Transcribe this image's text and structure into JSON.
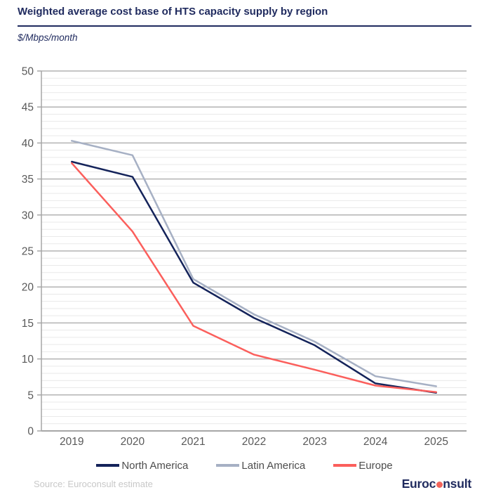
{
  "chart_data": {
    "type": "line",
    "title": "Weighted average cost base of HTS capacity supply by region",
    "ylabel": "$/Mbps/month",
    "xlabel": "",
    "x": [
      "2019",
      "2020",
      "2021",
      "2022",
      "2023",
      "2024",
      "2025"
    ],
    "series": [
      {
        "name": "North America",
        "color": "#14235a",
        "values": [
          37.4,
          35.3,
          20.6,
          15.7,
          11.9,
          6.6,
          5.3
        ]
      },
      {
        "name": "Latin America",
        "color": "#a6b0c4",
        "values": [
          40.3,
          38.3,
          21.1,
          16.2,
          12.4,
          7.6,
          6.2
        ]
      },
      {
        "name": "Europe",
        "color": "#fb5f5c",
        "values": [
          37.2,
          27.7,
          14.6,
          10.6,
          8.5,
          6.3,
          5.4
        ]
      }
    ],
    "ylim": [
      0,
      50
    ],
    "y_major_step": 5,
    "y_minor_step": 1,
    "y_tick_labels": [
      "0",
      "5",
      "10",
      "15",
      "20",
      "25",
      "30",
      "35",
      "40",
      "45",
      "50"
    ],
    "grid": "horizontal minor+major",
    "legend_position": "bottom"
  },
  "footer": {
    "source": "Source: Euroconsult estimate",
    "logo_part1": "Euroc",
    "logo_part2": "nsult"
  },
  "colors": {
    "brand_navy": "#1f2a5e",
    "logo_dot_red": "#f2645a",
    "axis_text": "#595959",
    "legend_text": "#4d4d4d",
    "source_text": "#c8c8c8",
    "grid_minor": "#e9e9e9",
    "grid_major": "#b3b3b3",
    "axis_line": "#a6a6a6"
  }
}
